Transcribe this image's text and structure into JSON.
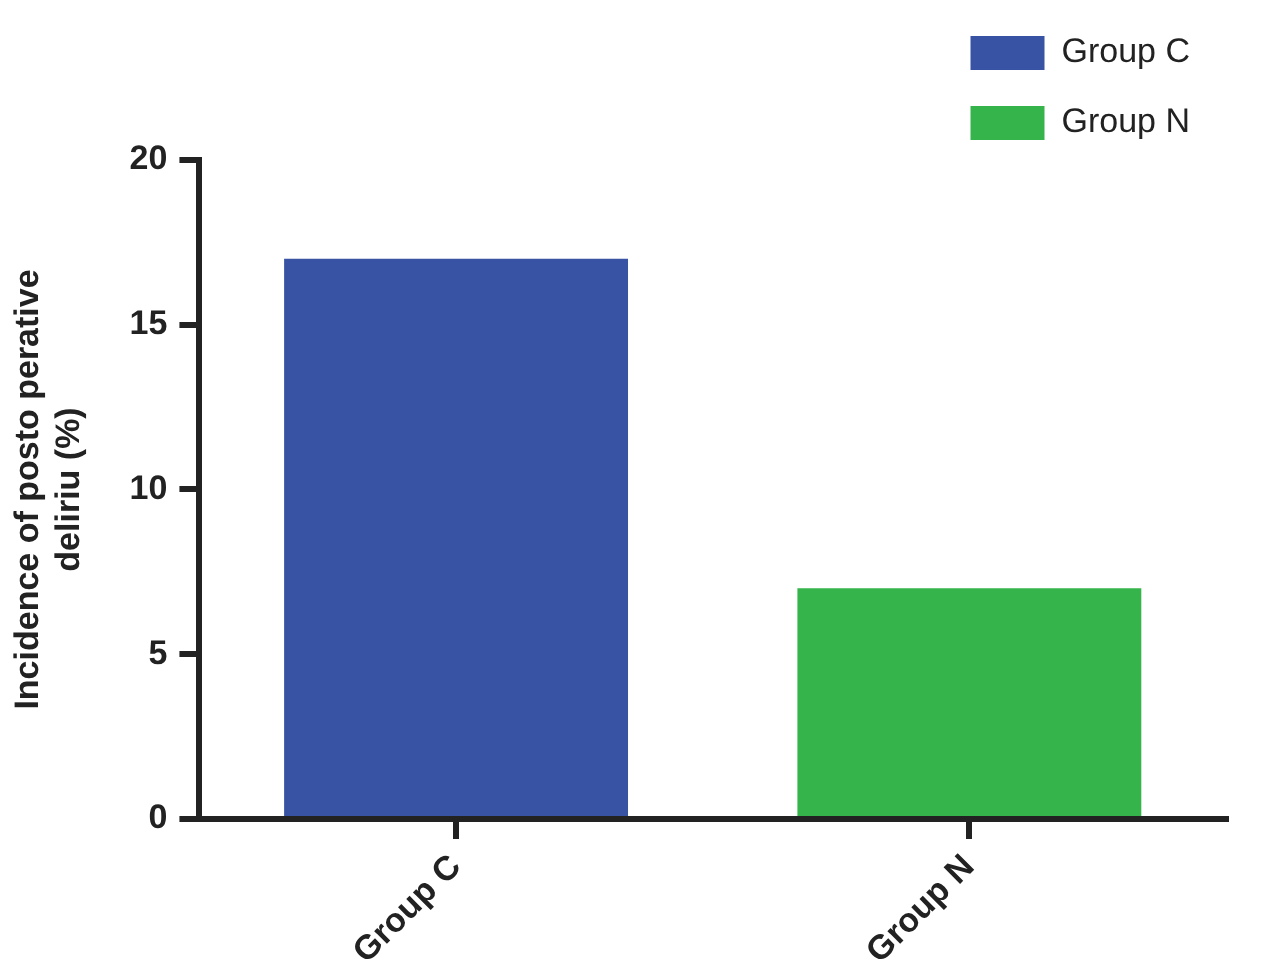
{
  "chart_data": {
    "type": "bar",
    "ylabel": "Incidence of posto perative\ndeliriu (%)",
    "categories": [
      "Group C",
      "Group N"
    ],
    "series": [
      {
        "name": "Group C",
        "color": "#3953a4",
        "values": [
          17,
          null
        ]
      },
      {
        "name": "Group N",
        "color": "#34b44a",
        "values": [
          null,
          7
        ]
      }
    ],
    "ylim": [
      0,
      20
    ],
    "yticks": [
      0,
      5,
      10,
      15,
      20
    ],
    "grid": false,
    "legend": "top right"
  }
}
